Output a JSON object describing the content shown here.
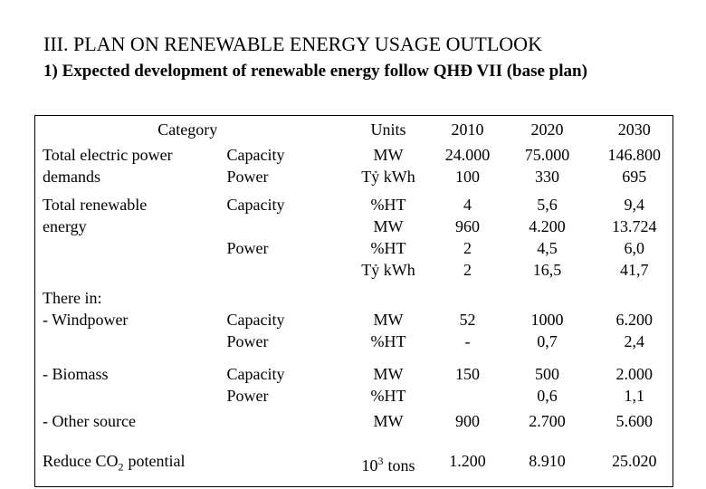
{
  "header": {
    "title": "III. PLAN ON RENEWABLE ENERGY USAGE OUTLOOK",
    "subtitle": "1) Expected development of renewable energy follow QHĐ VII (base plan)"
  },
  "table": {
    "columns": [
      "Category",
      "Units",
      "2010",
      "2020",
      "2030"
    ],
    "rows": [
      [
        [
          "Total electric power",
          "demands"
        ],
        [
          "Capacity",
          "Power"
        ],
        [
          "MW",
          "Tỷ kWh"
        ],
        [
          "24.000",
          "100"
        ],
        [
          "75.000",
          "330"
        ],
        [
          "146.800",
          "695"
        ]
      ],
      [
        [
          "Total renewable",
          "energy"
        ],
        [
          "Capacity",
          null,
          "Power"
        ],
        [
          "%HT",
          "MW",
          "%HT",
          "Tỷ kWh"
        ],
        [
          "4",
          "960",
          "2",
          "2"
        ],
        [
          "5,6",
          "4.200",
          "4,5",
          "16,5"
        ],
        [
          "9,4",
          "13.724",
          "6,0",
          "41,7"
        ]
      ],
      [
        [
          "There in:",
          "- Windpower"
        ],
        [
          null,
          "Capacity",
          "Power"
        ],
        [
          null,
          "MW",
          "%HT"
        ],
        [
          null,
          "52",
          "-"
        ],
        [
          null,
          "1000",
          "0,7"
        ],
        [
          null,
          "6.200",
          "2,4"
        ]
      ],
      [
        [
          "- Biomass"
        ],
        [
          "Capacity",
          "Power"
        ],
        [
          "MW",
          "%HT"
        ],
        [
          "150"
        ],
        [
          "500",
          "0,6"
        ],
        [
          "2.000",
          "1,1"
        ]
      ],
      [
        [
          "- Other source"
        ],
        [],
        [
          "MW"
        ],
        [
          "900"
        ],
        [
          "2.700"
        ],
        [
          "5.600"
        ]
      ],
      [
        [
          {
            "text": "Reduce CO",
            "sub": "2",
            "rest": "potential"
          }
        ],
        [],
        [
          {
            "text": "10",
            "sup": "3",
            "rest": "tons"
          }
        ],
        [
          "1.200"
        ],
        [
          "8.910"
        ],
        [
          "25.020"
        ]
      ]
    ]
  }
}
